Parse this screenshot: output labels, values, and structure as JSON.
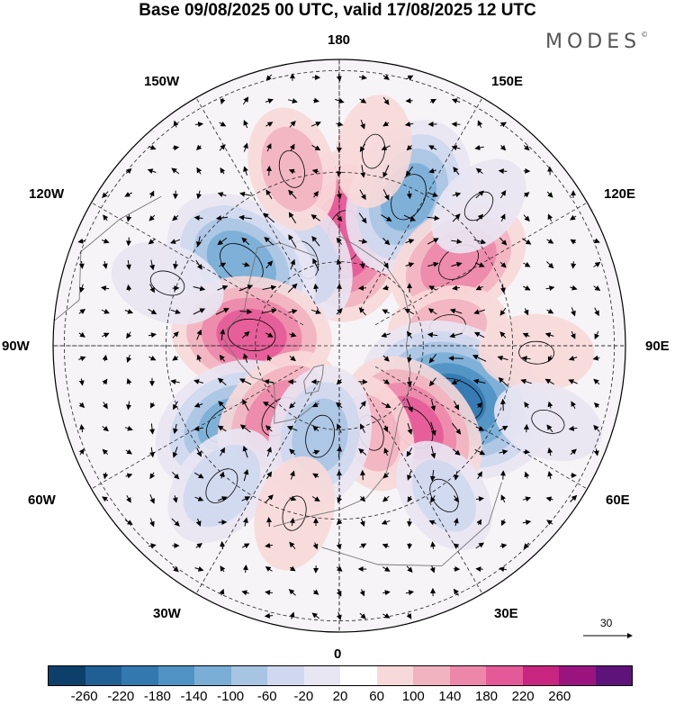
{
  "title": "Base 09/08/2025 00 UTC, valid 17/08/2025 12 UTC",
  "logo": "MODES",
  "logo_mark": "©",
  "lon_labels": {
    "top": "180",
    "bottom": "0",
    "left": "90W",
    "right": "90E",
    "ul1": "150W",
    "ul2": "120W",
    "ur1": "150E",
    "ur2": "120E",
    "ll1": "60W",
    "ll2": "30W",
    "lr1": "60E",
    "lr2": "30E"
  },
  "vector_reference": "30",
  "colorbar": {
    "colors": [
      "#0d3f6b",
      "#1f5f94",
      "#3478b0",
      "#4f93c4",
      "#7aaed6",
      "#a8c4e3",
      "#cfd8ee",
      "#e9e6f3",
      "#ffffff",
      "#f8d9d9",
      "#f2b3c0",
      "#ec87aa",
      "#e45a98",
      "#c7257f",
      "#9a1480",
      "#5e137a"
    ],
    "ticks": [
      "-260",
      "-220",
      "-180",
      "-140",
      "-100",
      "-60",
      "-20",
      "20",
      "60",
      "100",
      "140",
      "180",
      "220",
      "260"
    ]
  },
  "anomalies": [
    {
      "lon": 177,
      "colat": 26,
      "value": 175
    },
    {
      "lon": -158,
      "colat": 22,
      "value": -80
    },
    {
      "lon": 155,
      "colat": 38,
      "value": -150
    },
    {
      "lon": 125,
      "colat": 34,
      "value": 120
    },
    {
      "lon": 100,
      "colat": 26,
      "value": 60
    },
    {
      "lon": -130,
      "colat": 30,
      "value": -160
    },
    {
      "lon": -97,
      "colat": 21,
      "value": 150
    },
    {
      "lon": 65,
      "colat": 30,
      "value": -230
    },
    {
      "lon": 42,
      "colat": 26,
      "value": 150
    },
    {
      "lon": 20,
      "colat": 22,
      "value": 60
    },
    {
      "lon": -55,
      "colat": 32,
      "value": -140
    },
    {
      "lon": -40,
      "colat": 22,
      "value": 120
    },
    {
      "lon": -12,
      "colat": 22,
      "value": -110
    },
    {
      "lon": -40,
      "colat": 42,
      "value": -80
    },
    {
      "lon": 35,
      "colat": 42,
      "value": -60
    },
    {
      "lon": -15,
      "colat": 40,
      "value": 50
    },
    {
      "lon": 88,
      "colat": 45,
      "value": 50
    },
    {
      "lon": 70,
      "colat": 50,
      "value": -40
    },
    {
      "lon": -110,
      "colat": 42,
      "value": -50
    },
    {
      "lon": -165,
      "colat": 42,
      "value": 70
    },
    {
      "lon": 135,
      "colat": 45,
      "value": -40
    },
    {
      "lon": 170,
      "colat": 45,
      "value": 45
    }
  ]
}
